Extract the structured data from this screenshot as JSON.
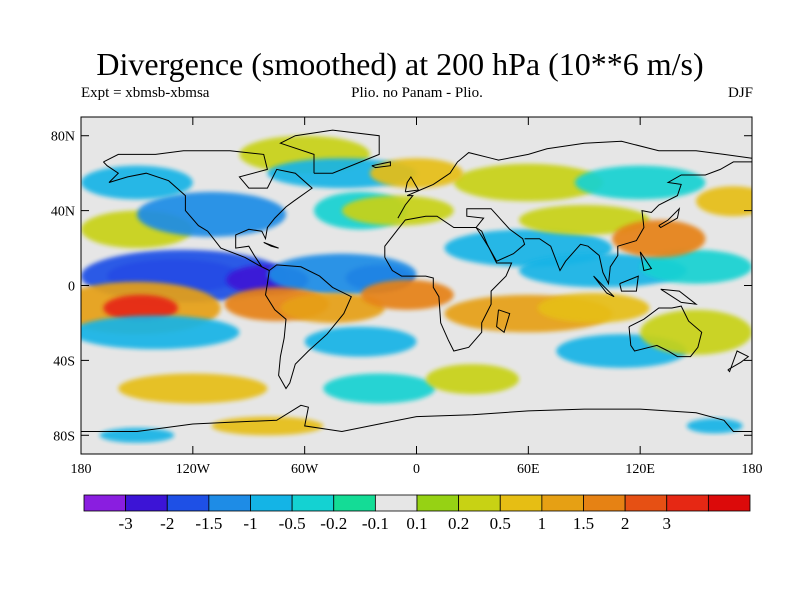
{
  "header": {
    "title": "Divergence (smoothed) at 200 hPa (10**6 m/s)",
    "left_text": "Expt = xbmsb-xbmsa",
    "center_text": "Plio. no Panam - Plio.",
    "right_text": "DJF"
  },
  "axes": {
    "lat_ticks": [
      {
        "label": "80N",
        "lat": 80
      },
      {
        "label": "40N",
        "lat": 40
      },
      {
        "label": "0",
        "lat": 0
      },
      {
        "label": "40S",
        "lat": -40
      },
      {
        "label": "80S",
        "lat": -80
      }
    ],
    "lon_ticks": [
      {
        "label": "180",
        "lon": -180
      },
      {
        "label": "120W",
        "lon": -120
      },
      {
        "label": "60W",
        "lon": -60
      },
      {
        "label": "0",
        "lon": 0
      },
      {
        "label": "60E",
        "lon": 60
      },
      {
        "label": "120E",
        "lon": 120
      },
      {
        "label": "180",
        "lon": 180
      }
    ],
    "lat_range": [
      -90,
      90
    ],
    "lon_range": [
      -180,
      180
    ]
  },
  "colorbar": {
    "colors": [
      "#8a1ee0",
      "#3c14d6",
      "#1e50e6",
      "#1e8ce6",
      "#14b4e6",
      "#14d2d2",
      "#14dc96",
      "#e6e6e6",
      "#96d214",
      "#c8d214",
      "#e6be14",
      "#e6a014",
      "#e68214",
      "#e65014",
      "#e62814",
      "#dc0a0a"
    ],
    "labels": [
      "-3",
      "-2",
      "-1.5",
      "-1",
      "-0.5",
      "-0.2",
      "-0.1",
      "0.1",
      "0.2",
      "0.5",
      "1",
      "1.5",
      "2",
      "3"
    ]
  },
  "field_blobs": [
    {
      "lon": -130,
      "lat": 5,
      "rx": 36,
      "ry": 9,
      "level": 0
    },
    {
      "lon": -125,
      "lat": 5,
      "rx": 55,
      "ry": 14,
      "level": 2
    },
    {
      "lon": -80,
      "lat": 3,
      "rx": 22,
      "ry": 8,
      "level": 1
    },
    {
      "lon": -20,
      "lat": 4,
      "rx": 18,
      "ry": 7,
      "level": 1
    },
    {
      "lon": -40,
      "lat": 6,
      "rx": 40,
      "ry": 11,
      "level": 3
    },
    {
      "lon": -150,
      "lat": 30,
      "rx": 30,
      "ry": 10,
      "level": 9
    },
    {
      "lon": -110,
      "lat": 38,
      "rx": 40,
      "ry": 12,
      "level": 3
    },
    {
      "lon": -30,
      "lat": 40,
      "rx": 25,
      "ry": 10,
      "level": 5
    },
    {
      "lon": 60,
      "lat": 20,
      "rx": 45,
      "ry": 10,
      "level": 4
    },
    {
      "lon": 100,
      "lat": 8,
      "rx": 45,
      "ry": 9,
      "level": 4
    },
    {
      "lon": 150,
      "lat": 10,
      "rx": 30,
      "ry": 9,
      "level": 5
    },
    {
      "lon": 90,
      "lat": 35,
      "rx": 35,
      "ry": 8,
      "level": 9
    },
    {
      "lon": -10,
      "lat": 40,
      "rx": 30,
      "ry": 8,
      "level": 9
    },
    {
      "lon": -60,
      "lat": 70,
      "rx": 35,
      "ry": 10,
      "level": 9
    },
    {
      "lon": 60,
      "lat": 55,
      "rx": 40,
      "ry": 10,
      "level": 9
    },
    {
      "lon": 130,
      "lat": 25,
      "rx": 25,
      "ry": 10,
      "level": 12
    },
    {
      "lon": -150,
      "lat": -12,
      "rx": 45,
      "ry": 14,
      "level": 11
    },
    {
      "lon": -148,
      "lat": -12,
      "rx": 20,
      "ry": 7,
      "level": 14
    },
    {
      "lon": -75,
      "lat": -10,
      "rx": 28,
      "ry": 9,
      "level": 12
    },
    {
      "lon": -45,
      "lat": -12,
      "rx": 28,
      "ry": 8,
      "level": 11
    },
    {
      "lon": -5,
      "lat": -5,
      "rx": 25,
      "ry": 8,
      "level": 12
    },
    {
      "lon": 60,
      "lat": -15,
      "rx": 45,
      "ry": 10,
      "level": 11
    },
    {
      "lon": 95,
      "lat": -12,
      "rx": 30,
      "ry": 8,
      "level": 10
    },
    {
      "lon": -140,
      "lat": -25,
      "rx": 45,
      "ry": 9,
      "level": 4
    },
    {
      "lon": -30,
      "lat": -30,
      "rx": 30,
      "ry": 8,
      "level": 4
    },
    {
      "lon": 110,
      "lat": -35,
      "rx": 35,
      "ry": 9,
      "level": 4
    },
    {
      "lon": 150,
      "lat": -25,
      "rx": 30,
      "ry": 12,
      "level": 9
    },
    {
      "lon": -20,
      "lat": -55,
      "rx": 30,
      "ry": 8,
      "level": 5
    },
    {
      "lon": 30,
      "lat": -50,
      "rx": 25,
      "ry": 8,
      "level": 9
    },
    {
      "lon": -120,
      "lat": -55,
      "rx": 40,
      "ry": 8,
      "level": 10
    },
    {
      "lon": -80,
      "lat": -75,
      "rx": 30,
      "ry": 5,
      "level": 10
    },
    {
      "lon": -150,
      "lat": -80,
      "rx": 20,
      "ry": 4,
      "level": 4
    },
    {
      "lon": 160,
      "lat": -75,
      "rx": 15,
      "ry": 4,
      "level": 4
    },
    {
      "lon": -40,
      "lat": 60,
      "rx": 40,
      "ry": 8,
      "level": 4
    },
    {
      "lon": 0,
      "lat": 60,
      "rx": 25,
      "ry": 8,
      "level": 10
    },
    {
      "lon": -150,
      "lat": 55,
      "rx": 30,
      "ry": 9,
      "level": 4
    },
    {
      "lon": 120,
      "lat": 55,
      "rx": 35,
      "ry": 9,
      "level": 5
    },
    {
      "lon": 170,
      "lat": 45,
      "rx": 20,
      "ry": 8,
      "level": 10
    }
  ]
}
